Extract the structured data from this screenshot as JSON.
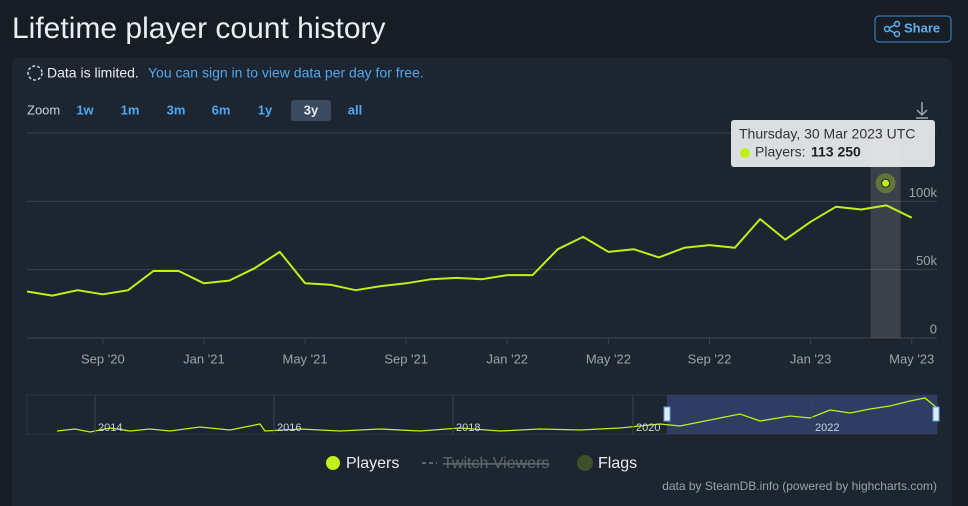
{
  "header": {
    "title": "Lifetime player count history",
    "share": "Share"
  },
  "notice": {
    "text": "Data is limited.",
    "link": "You can sign in to view data per day for free."
  },
  "zoom": {
    "label": "Zoom",
    "buttons": [
      "1w",
      "1m",
      "3m",
      "6m",
      "1y",
      "3y",
      "all"
    ],
    "active": "3y"
  },
  "chart_data": {
    "type": "line",
    "x": [
      "2020-06",
      "2020-07",
      "2020-08",
      "2020-09",
      "2020-10",
      "2020-11",
      "2020-12",
      "2021-01",
      "2021-02",
      "2021-03",
      "2021-04",
      "2021-05",
      "2021-06",
      "2021-07",
      "2021-08",
      "2021-09",
      "2021-10",
      "2021-11",
      "2021-12",
      "2022-01",
      "2022-02",
      "2022-03",
      "2022-04",
      "2022-05",
      "2022-06",
      "2022-07",
      "2022-08",
      "2022-09",
      "2022-10",
      "2022-11",
      "2022-12",
      "2023-01",
      "2023-02",
      "2023-03",
      "2023-04",
      "2023-05"
    ],
    "series": [
      {
        "name": "Players",
        "color": "#bff01a",
        "values": [
          34000,
          31000,
          35000,
          32000,
          35000,
          49000,
          49000,
          40000,
          42000,
          51000,
          63000,
          40000,
          39000,
          35000,
          38000,
          40000,
          43000,
          44000,
          43000,
          46000,
          46000,
          65000,
          74000,
          63000,
          65000,
          59000,
          66000,
          68000,
          66000,
          87000,
          72000,
          85000,
          96000,
          94000,
          97000,
          88000
        ]
      }
    ],
    "xlim": [
      "2020-06",
      "2023-06"
    ],
    "xticks": [
      {
        "value": "2020-09",
        "label": "Sep '20"
      },
      {
        "value": "2021-01",
        "label": "Jan '21"
      },
      {
        "value": "2021-05",
        "label": "May '21"
      },
      {
        "value": "2021-09",
        "label": "Sep '21"
      },
      {
        "value": "2022-01",
        "label": "Jan '22"
      },
      {
        "value": "2022-05",
        "label": "May '22"
      },
      {
        "value": "2022-09",
        "label": "Sep '22"
      },
      {
        "value": "2023-01",
        "label": "Jan '23"
      },
      {
        "value": "2023-05",
        "label": "May '23"
      }
    ],
    "ylim": [
      0,
      150000
    ],
    "yticks": [
      0,
      {
        "value": 50000,
        "label": "50k"
      },
      {
        "value": 100000,
        "label": "100k"
      }
    ],
    "grid": true,
    "tooltip": {
      "date": "Thursday, 30 Mar 2023 UTC",
      "x": "2023-03-30",
      "series": "Players:",
      "value": 113250,
      "value_label": "113 250"
    }
  },
  "navigator": {
    "labels": [
      "2014",
      "2016",
      "2018",
      "2020",
      "2022"
    ]
  },
  "legend": [
    {
      "name": "Players",
      "color": "#bff01a"
    },
    {
      "name": "Twitch Viewers",
      "color": "#5d6670"
    },
    {
      "name": "Flags",
      "color": "#3f4f2c"
    }
  ],
  "credit": "data by SteamDB.info (powered by highcharts.com)"
}
